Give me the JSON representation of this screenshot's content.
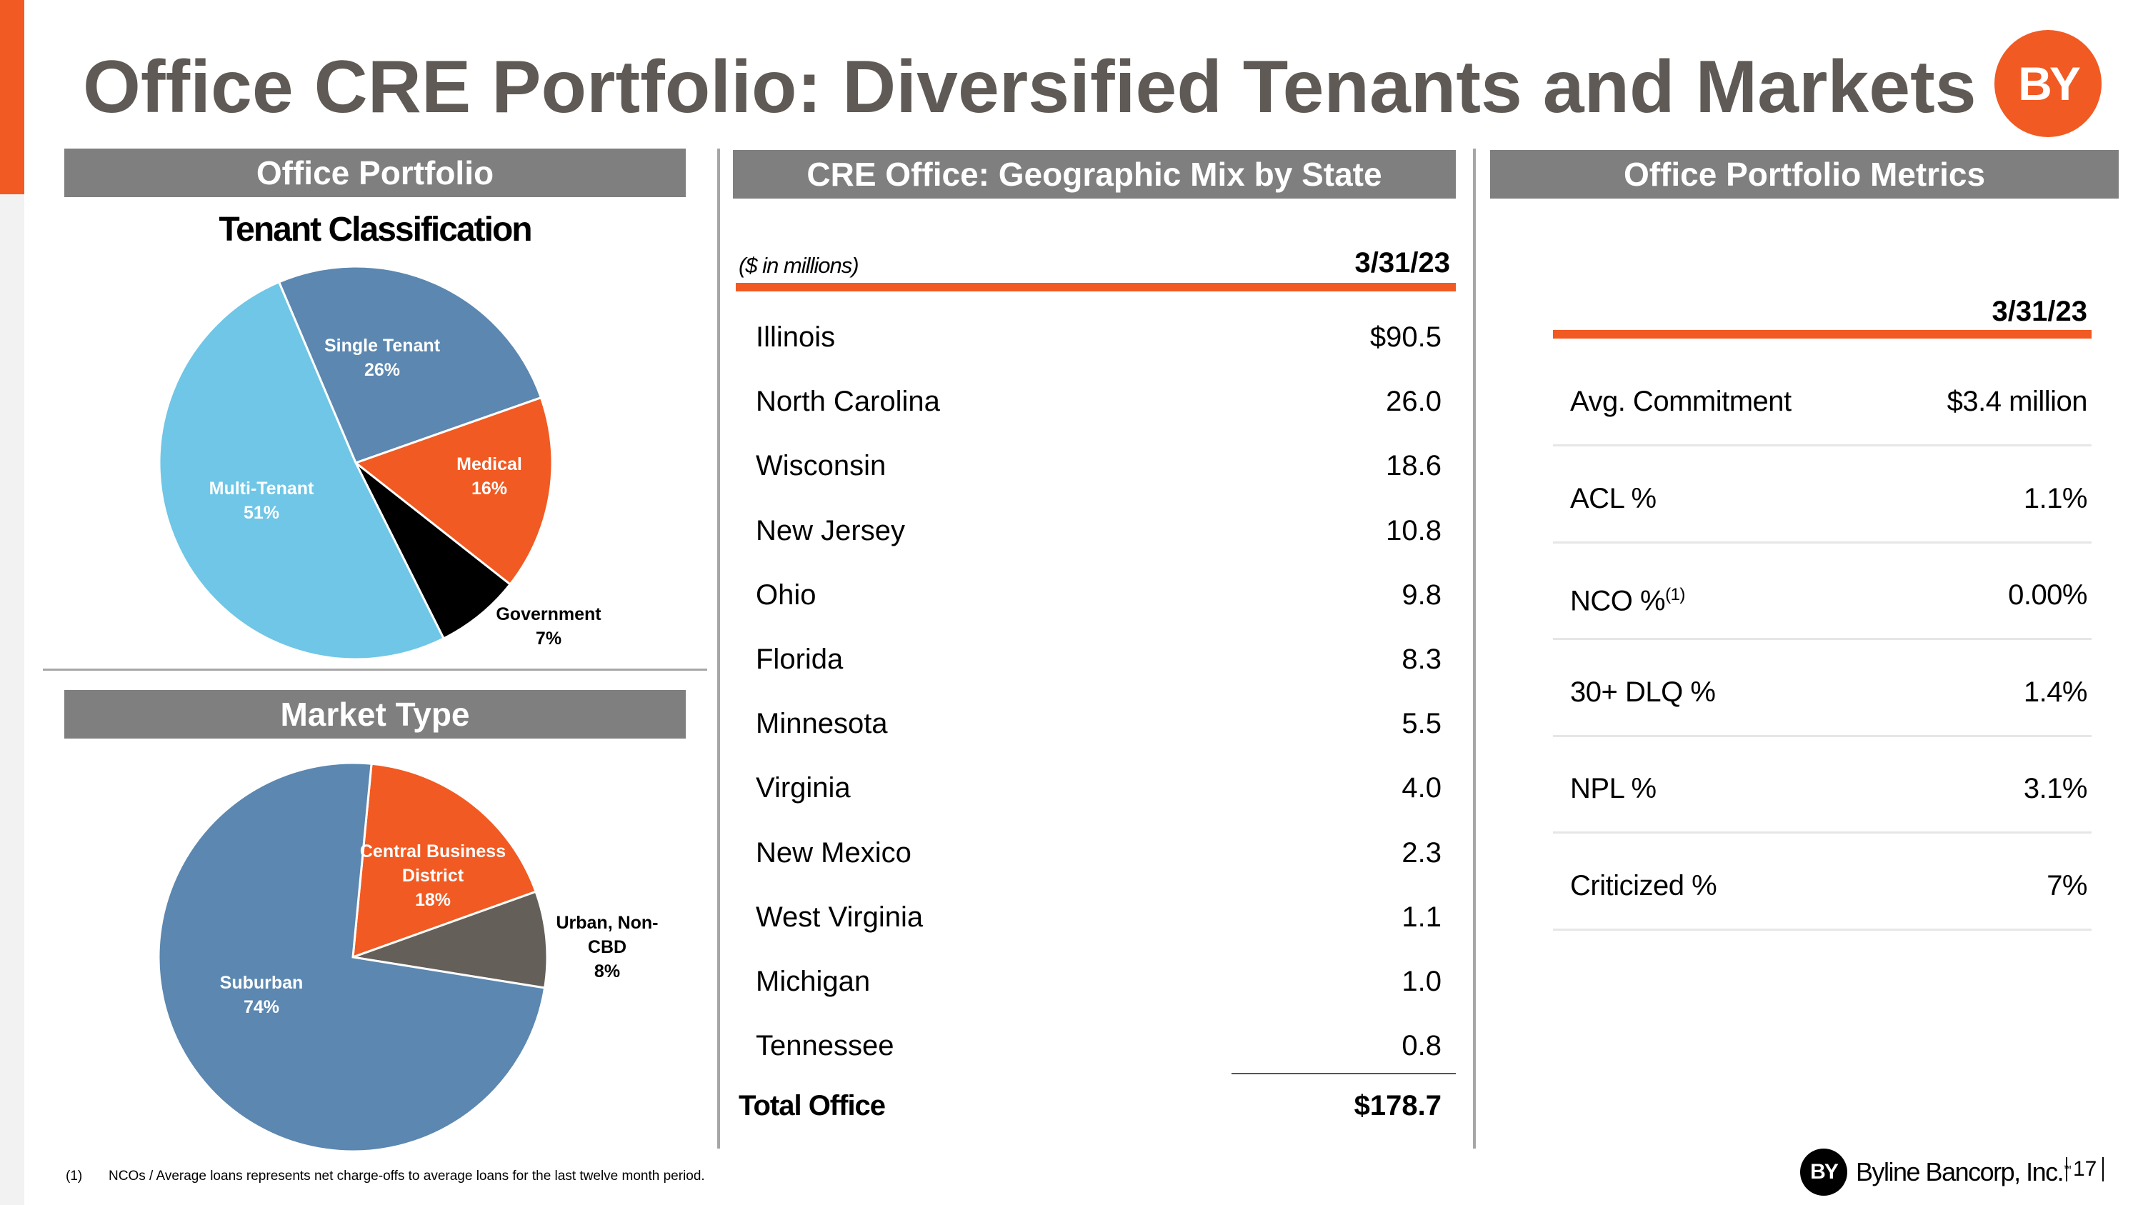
{
  "slide": {
    "title": "Office CRE Portfolio: Diversified Tenants and Markets",
    "logo_text": "BY",
    "page_number": "17",
    "footnote": {
      "marker": "(1)",
      "text": "NCOs / Average loans represents net charge-offs to average loans for the last twelve month period."
    },
    "brand": {
      "badge": "BY",
      "name": "Byline Bancorp, Inc.",
      "tm": "™"
    }
  },
  "colors": {
    "accent": "#f15a22",
    "band_gray": "#7f7f7f",
    "steel_blue": "#5b87b0",
    "light_blue": "#6fc6e6",
    "black": "#000000",
    "dark_gray": "#645f59",
    "title_gray": "#5f5a55"
  },
  "left_panel": {
    "header": "Office Portfolio",
    "subtitle": "Tenant Classification",
    "market_header": "Market Type"
  },
  "chart_data": [
    {
      "type": "pie",
      "title": "Tenant Classification",
      "slices": [
        {
          "name": "Single Tenant",
          "value": 26,
          "label": "26%",
          "color": "#5b87b0",
          "label_color": "#ffffff"
        },
        {
          "name": "Medical",
          "value": 16,
          "label": "16%",
          "color": "#f15a22",
          "label_color": "#ffffff"
        },
        {
          "name": "Government",
          "value": 7,
          "label": "7%",
          "color": "#000000",
          "label_color": "#000000"
        },
        {
          "name": "Multi-Tenant",
          "value": 51,
          "label": "51%",
          "color": "#6fc6e6",
          "label_color": "#ffffff"
        }
      ]
    },
    {
      "type": "pie",
      "title": "Market Type",
      "slices": [
        {
          "name": "Central Business District",
          "value": 18,
          "label": "18%",
          "color": "#f15a22",
          "label_color": "#ffffff"
        },
        {
          "name": "Urban, Non-CBD",
          "value": 8,
          "label": "8%",
          "color": "#645f59",
          "label_color": "#000000"
        },
        {
          "name": "Suburban",
          "value": 74,
          "label": "74%",
          "color": "#5b87b0",
          "label_color": "#ffffff"
        }
      ]
    }
  ],
  "geo_table": {
    "header": "CRE Office: Geographic Mix by State",
    "units_label": "($  in millions)",
    "date": "3/31/23",
    "rows": [
      {
        "state": "Illinois",
        "value": "$90.5"
      },
      {
        "state": "North Carolina",
        "value": "26.0"
      },
      {
        "state": "Wisconsin",
        "value": "18.6"
      },
      {
        "state": "New Jersey",
        "value": "10.8"
      },
      {
        "state": "Ohio",
        "value": "9.8"
      },
      {
        "state": "Florida",
        "value": "8.3"
      },
      {
        "state": "Minnesota",
        "value": "5.5"
      },
      {
        "state": "Virginia",
        "value": "4.0"
      },
      {
        "state": "New Mexico",
        "value": "2.3"
      },
      {
        "state": "West Virginia",
        "value": "1.1"
      },
      {
        "state": "Michigan",
        "value": "1.0"
      },
      {
        "state": "Tennessee",
        "value": "0.8"
      }
    ],
    "total_label": "Total Office",
    "total_value": "$178.7"
  },
  "metrics": {
    "header": "Office Portfolio Metrics",
    "date": "3/31/23",
    "rows": [
      {
        "label": "Avg. Commitment",
        "sup": "",
        "value": "$3.4 million"
      },
      {
        "label": "ACL %",
        "sup": "",
        "value": "1.1%"
      },
      {
        "label": "NCO %",
        "sup": "(1)",
        "value": "0.00%"
      },
      {
        "label": "30+ DLQ %",
        "sup": "",
        "value": "1.4%"
      },
      {
        "label": "NPL %",
        "sup": "",
        "value": "3.1%"
      },
      {
        "label": "Criticized %",
        "sup": "",
        "value": "7%"
      }
    ]
  }
}
